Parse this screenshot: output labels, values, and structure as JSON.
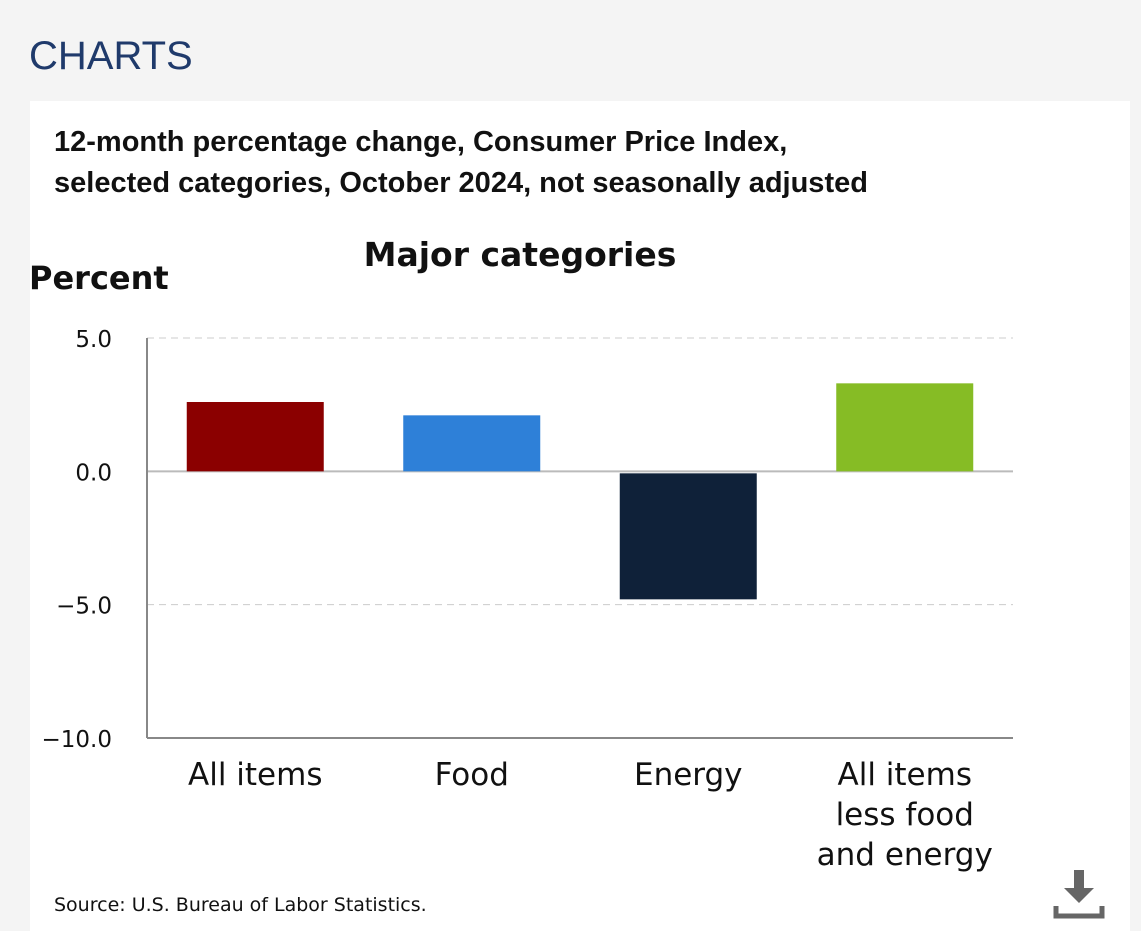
{
  "section_title": "CHARTS",
  "chart_data": {
    "type": "bar",
    "title_lines": [
      "12-month percentage change, Consumer Price Index,",
      "selected categories, October 2024, not seasonally adjusted"
    ],
    "subtitle": "Major categories",
    "ylabel": "Percent",
    "xlabel": "",
    "ylim": [
      -10.0,
      5.0
    ],
    "yticks": [
      5.0,
      0.0,
      -5.0,
      -10.0
    ],
    "ytick_labels": [
      "5.0",
      "0.0",
      "−5.0",
      "−10.0"
    ],
    "grid": true,
    "categories": [
      [
        "All items"
      ],
      [
        "Food"
      ],
      [
        "Energy"
      ],
      [
        "All items",
        "less food",
        "and energy"
      ]
    ],
    "values": [
      2.6,
      2.1,
      -4.8,
      3.3
    ],
    "colors": [
      "#8b0000",
      "#2e80d8",
      "#0f2139",
      "#86bc25"
    ]
  },
  "source_text": "Source: U.S. Bureau of Labor Statistics.",
  "download_icon": "download-icon"
}
